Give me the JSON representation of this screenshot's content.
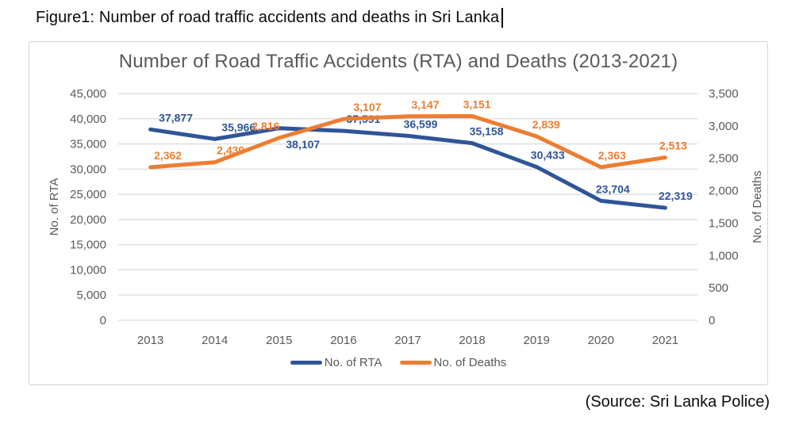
{
  "caption": "Figure1: Number of road traffic accidents and deaths in Sri Lanka",
  "source_note": "(Source: Sri Lanka Police)",
  "chart_data": {
    "type": "line",
    "title": "Number of Road Traffic Accidents (RTA) and Deaths (2013-2021)",
    "categories": [
      "2013",
      "2014",
      "2015",
      "2016",
      "2017",
      "2018",
      "2019",
      "2020",
      "2021"
    ],
    "series": [
      {
        "name": "No. of RTA",
        "axis": "left",
        "color": "#2F5597",
        "values": [
          37877,
          35966,
          38107,
          37591,
          36599,
          35158,
          30433,
          23704,
          22319
        ],
        "labels": [
          "37,877",
          "35,966",
          "38,107",
          "37,591",
          "36,599",
          "35,158",
          "30,433",
          "23,704",
          "22,319"
        ],
        "label_below": [
          2
        ],
        "label_dx": [
          32,
          30,
          30,
          25,
          16,
          18,
          14,
          15,
          13
        ]
      },
      {
        "name": "No. of Deaths",
        "axis": "right",
        "color": "#ED7D31",
        "values": [
          2362,
          2439,
          2816,
          3107,
          3147,
          3151,
          2839,
          2363,
          2513
        ],
        "labels": [
          "2,362",
          "2,439",
          "2,816",
          "3,107",
          "3,147",
          "3,151",
          "2,839",
          "2,363",
          "2,513"
        ],
        "label_below": [],
        "label_dx": [
          22,
          20,
          -17,
          30,
          22,
          6,
          12,
          14,
          10
        ]
      }
    ],
    "left_axis": {
      "label": "No. of RTA",
      "min": 0,
      "max": 45000,
      "step": 5000,
      "ticks": [
        "45,000",
        "40,000",
        "35,000",
        "30,000",
        "25,000",
        "20,000",
        "15,000",
        "10,000",
        "5,000",
        "0"
      ]
    },
    "right_axis": {
      "label": "No. of Deaths",
      "min": 0,
      "max": 3500,
      "step": 500,
      "ticks": [
        "3,500",
        "3,000",
        "2,500",
        "2,000",
        "1,500",
        "1,000",
        "500",
        "0"
      ]
    },
    "grid": true,
    "legend_position": "bottom",
    "colors": {
      "grid": "#d9d9d9",
      "text": "#595959",
      "border": "#d4d4d4"
    }
  }
}
